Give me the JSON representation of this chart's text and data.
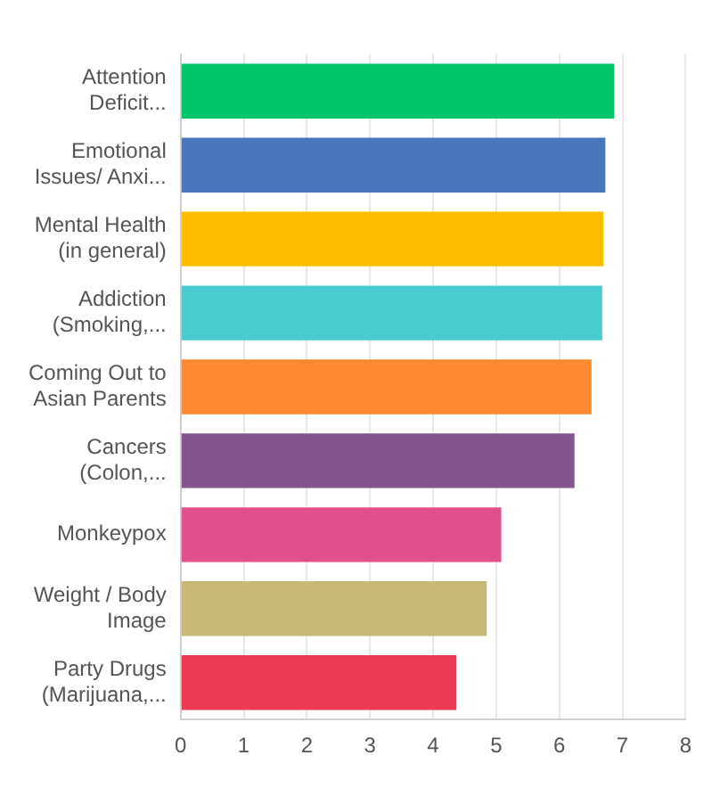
{
  "chart_data": {
    "type": "bar",
    "orientation": "horizontal",
    "categories": [
      "Attention Deficit...",
      "Emotional Issues/ Anxi...",
      "Mental Health (in general)",
      "Addiction (Smoking,...",
      "Coming Out to Asian Parents",
      "Cancers (Colon,...",
      "Monkeypox",
      "Weight / Body Image",
      "Party Drugs (Marijuana,..."
    ],
    "values": [
      6.87,
      6.73,
      6.7,
      6.68,
      6.51,
      6.24,
      5.08,
      4.85,
      4.37
    ],
    "colors": [
      "#00c66b",
      "#4a76bb",
      "#ffbf00",
      "#4acbcf",
      "#ff8833",
      "#85548f",
      "#e14f8d",
      "#c8b974",
      "#ee3a52"
    ],
    "xlim": [
      0,
      8
    ],
    "xticks": [
      0,
      1,
      2,
      3,
      4,
      5,
      6,
      7,
      8
    ],
    "grid": "x",
    "legend": false
  }
}
